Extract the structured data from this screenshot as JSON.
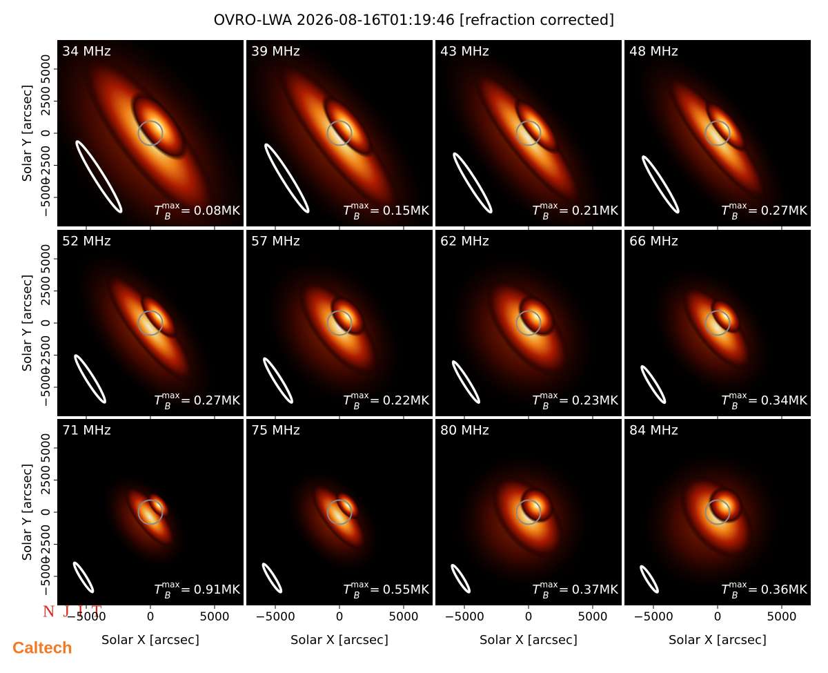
{
  "title": "OVRO-LWA 2026-08-16T01:19:46 [refraction corrected]",
  "panels": [
    {
      "freq": "34 MHz",
      "tb_max": "0.08MK"
    },
    {
      "freq": "39 MHz",
      "tb_max": "0.15MK"
    },
    {
      "freq": "43 MHz",
      "tb_max": "0.21MK"
    },
    {
      "freq": "48 MHz",
      "tb_max": "0.27MK"
    },
    {
      "freq": "52 MHz",
      "tb_max": "0.27MK"
    },
    {
      "freq": "57 MHz",
      "tb_max": "0.22MK"
    },
    {
      "freq": "62 MHz",
      "tb_max": "0.23MK"
    },
    {
      "freq": "66 MHz",
      "tb_max": "0.34MK"
    },
    {
      "freq": "71 MHz",
      "tb_max": "0.91MK"
    },
    {
      "freq": "75 MHz",
      "tb_max": "0.55MK"
    },
    {
      "freq": "80 MHz",
      "tb_max": "0.37MK"
    },
    {
      "freq": "84 MHz",
      "tb_max": "0.36MK"
    }
  ],
  "tb_symbol": {
    "base": "T",
    "sub": "B",
    "sup": "max",
    "eq": "="
  },
  "x_axis": {
    "label": "Solar X [arcsec]",
    "lim": [
      -7260,
      7260
    ],
    "ticks": [
      {
        "value": -5000,
        "label": "−5000"
      },
      0,
      5000
    ]
  },
  "y_axis": {
    "label": "Solar Y [arcsec]",
    "lim": [
      -7260,
      7260
    ],
    "ticks": [
      {
        "value": -5000,
        "label": "−5000"
      },
      {
        "value": -2500,
        "label": "−2500"
      },
      0,
      2500,
      5000
    ]
  },
  "logos": {
    "njit": "NJIT",
    "caltech": "Caltech"
  }
}
